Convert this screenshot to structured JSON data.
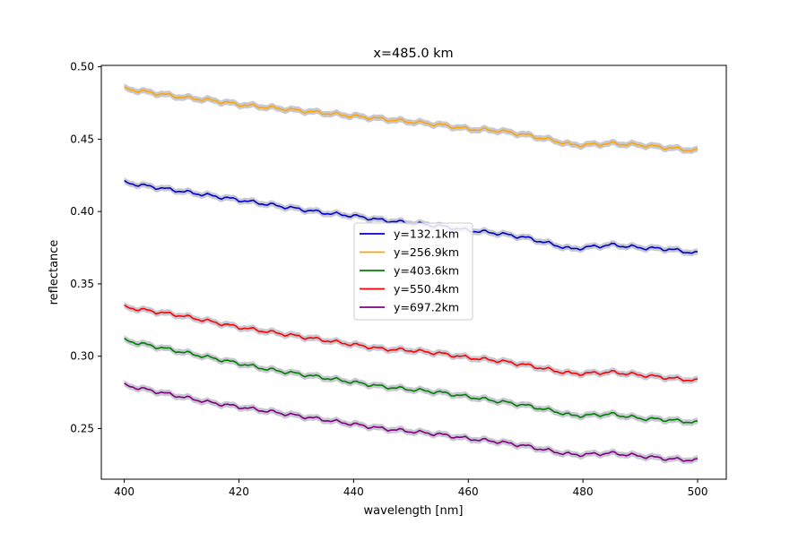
{
  "chart_data": {
    "type": "line",
    "title": "x=485.0 km",
    "xlabel": "wavelength [nm]",
    "ylabel": "reflectance",
    "xlim": [
      396,
      505
    ],
    "ylim": [
      0.215,
      0.501
    ],
    "xticks": [
      400,
      420,
      440,
      460,
      480,
      500
    ],
    "xtick_labels": [
      "400",
      "420",
      "440",
      "460",
      "480",
      "500"
    ],
    "yticks": [
      0.25,
      0.3,
      0.35,
      0.4,
      0.45,
      0.5
    ],
    "ytick_labels": [
      "0.25",
      "0.30",
      "0.35",
      "0.40",
      "0.45",
      "0.50"
    ],
    "grid": false,
    "legend_position": "center",
    "uncertainty_band_color": "#c8c8d2",
    "x": [
      400,
      405,
      410,
      415,
      420,
      425,
      430,
      435,
      440,
      445,
      450,
      455,
      460,
      465,
      470,
      475,
      478,
      480,
      485,
      490,
      495,
      500
    ],
    "series": [
      {
        "name": "y=132.1km",
        "color": "#0000cd",
        "values": [
          0.42,
          0.417,
          0.414,
          0.411,
          0.408,
          0.405,
          0.402,
          0.399,
          0.397,
          0.394,
          0.392,
          0.39,
          0.387,
          0.385,
          0.382,
          0.377,
          0.374,
          0.375,
          0.377,
          0.375,
          0.374,
          0.371
        ]
      },
      {
        "name": "y=256.9km",
        "color": "#ffa500",
        "values": [
          0.485,
          0.482,
          0.479,
          0.477,
          0.474,
          0.472,
          0.47,
          0.468,
          0.466,
          0.464,
          0.462,
          0.46,
          0.457,
          0.456,
          0.453,
          0.449,
          0.446,
          0.446,
          0.447,
          0.446,
          0.444,
          0.442
        ]
      },
      {
        "name": "y=403.6km",
        "color": "#008000",
        "values": [
          0.311,
          0.307,
          0.303,
          0.299,
          0.295,
          0.291,
          0.288,
          0.285,
          0.282,
          0.279,
          0.277,
          0.275,
          0.272,
          0.269,
          0.266,
          0.262,
          0.259,
          0.259,
          0.26,
          0.257,
          0.256,
          0.254
        ]
      },
      {
        "name": "y=550.4km",
        "color": "#ff0000",
        "values": [
          0.334,
          0.331,
          0.328,
          0.324,
          0.32,
          0.317,
          0.314,
          0.311,
          0.308,
          0.305,
          0.304,
          0.302,
          0.299,
          0.297,
          0.294,
          0.29,
          0.288,
          0.288,
          0.289,
          0.287,
          0.285,
          0.283
        ]
      },
      {
        "name": "y=697.2km",
        "color": "#800080",
        "values": [
          0.28,
          0.276,
          0.272,
          0.268,
          0.265,
          0.262,
          0.259,
          0.256,
          0.253,
          0.25,
          0.248,
          0.246,
          0.243,
          0.241,
          0.238,
          0.234,
          0.232,
          0.232,
          0.233,
          0.231,
          0.229,
          0.228
        ]
      }
    ]
  }
}
